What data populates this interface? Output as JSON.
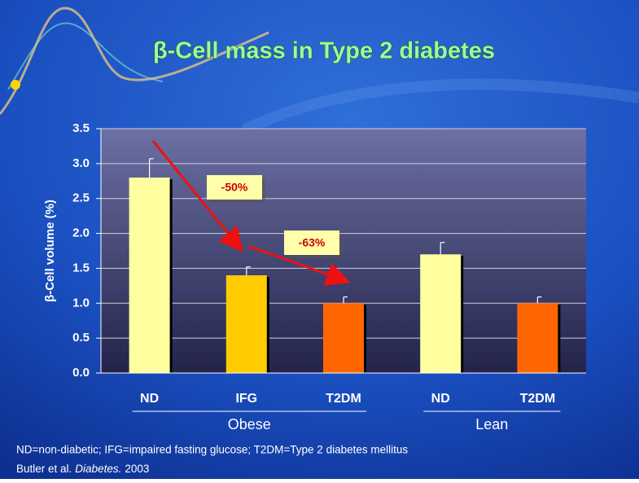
{
  "chart_data": {
    "type": "bar",
    "title": "β-Cell mass in Type 2 diabetes",
    "y_label": "β-Cell volume (%)",
    "categories": [
      "ND",
      "IFG",
      "T2DM",
      "ND",
      "T2DM"
    ],
    "values": [
      2.8,
      1.4,
      1.0,
      1.7,
      1.0
    ],
    "errors": [
      0.27,
      0.12,
      0.09,
      0.17,
      0.09
    ],
    "colors": [
      "#ffffa0",
      "#ffcc00",
      "#ff6600",
      "#ffffa0",
      "#ff6600"
    ],
    "group_labels": [
      "Obese",
      "Lean"
    ],
    "annotations": [
      "-50%",
      "-63%"
    ],
    "ylim": [
      0,
      3.5
    ],
    "yticks": [
      {
        "value": 0,
        "label": "0.0"
      },
      0.5,
      {
        "value": 1,
        "label": "1.0"
      },
      1.5,
      {
        "value": 2,
        "label": "2.0"
      },
      2.5,
      {
        "value": 3,
        "label": "3.0"
      },
      3.5
    ],
    "grid": true,
    "footnote": "ND=non-diabetic; IFG=impaired fasting glucose; T2DM=Type 2 diabetes mellitus",
    "citation": [
      "Butler et al.",
      "Diabetes.",
      "2003"
    ]
  }
}
